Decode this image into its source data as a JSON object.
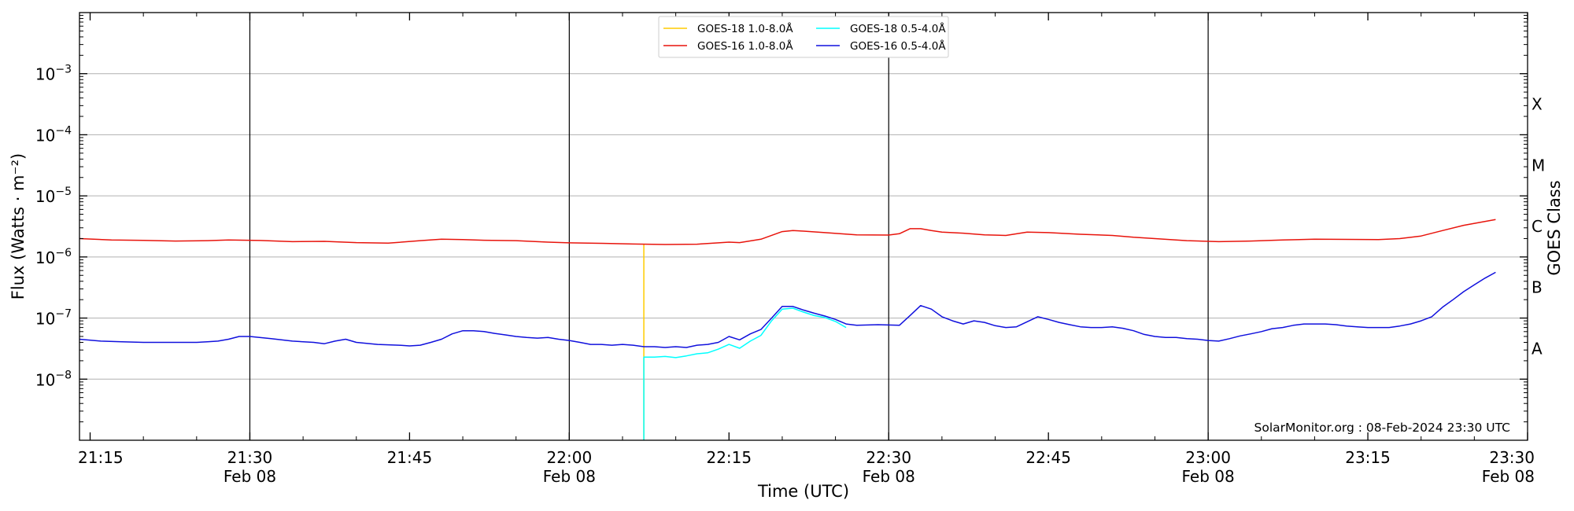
{
  "chart_data": {
    "type": "line",
    "title": "",
    "xlabel": "Time (UTC)",
    "ylabel": "Flux (Watts · m⁻²)",
    "ylabel_right": "GOES Class",
    "y_scale": "log",
    "ylim": [
      "1e-9",
      "1e-2"
    ],
    "xlim": [
      "21:14",
      "23:30"
    ],
    "date_label": "Feb 08",
    "x_ticks": [
      {
        "time": "21:15",
        "label": "21:15",
        "show_date": false
      },
      {
        "time": "21:30",
        "label": "21:30",
        "show_date": true
      },
      {
        "time": "21:45",
        "label": "21:45",
        "show_date": false
      },
      {
        "time": "22:00",
        "label": "22:00",
        "show_date": true
      },
      {
        "time": "22:15",
        "label": "22:15",
        "show_date": false
      },
      {
        "time": "22:30",
        "label": "22:30",
        "show_date": true
      },
      {
        "time": "22:45",
        "label": "22:45",
        "show_date": false
      },
      {
        "time": "23:00",
        "label": "23:00",
        "show_date": true
      },
      {
        "time": "23:15",
        "label": "23:15",
        "show_date": false
      },
      {
        "time": "23:30",
        "label": "23:30",
        "show_date": true
      }
    ],
    "vertical_lines": [
      "21:30",
      "22:00",
      "22:30",
      "23:00"
    ],
    "y_ticks": [
      {
        "value": "1e-8",
        "mant": "10",
        "exp": "−8"
      },
      {
        "value": "1e-7",
        "mant": "10",
        "exp": "−7"
      },
      {
        "value": "1e-6",
        "mant": "10",
        "exp": "−6"
      },
      {
        "value": "1e-5",
        "mant": "10",
        "exp": "−5"
      },
      {
        "value": "1e-4",
        "mant": "10",
        "exp": "−4"
      },
      {
        "value": "1e-3",
        "mant": "10",
        "exp": "−3"
      }
    ],
    "class_labels": [
      {
        "label": "A",
        "value": "3.16e-8"
      },
      {
        "label": "B",
        "value": "3.16e-7"
      },
      {
        "label": "C",
        "value": "3.16e-6"
      },
      {
        "label": "M",
        "value": "3.16e-5"
      },
      {
        "label": "X",
        "value": "3.16e-4"
      }
    ],
    "grid": "horizontal",
    "legend_position": "top-center",
    "annotation": "SolarMonitor.org : 08-Feb-2024 23:30 UTC",
    "series": [
      {
        "name": "GOES-18 1.0-8.0Å",
        "color": "#ffcc00",
        "x": [
          "22:07",
          "22:07"
        ],
        "y": [
          "1e-9",
          "1.6e-6"
        ]
      },
      {
        "name": "GOES-18 0.5-4.0Å",
        "color": "#00ffff",
        "x": [
          "22:07",
          "22:07",
          "22:08",
          "22:09",
          "22:10",
          "22:11",
          "22:12",
          "22:13",
          "22:14",
          "22:15",
          "22:16",
          "22:17",
          "22:18",
          "22:19",
          "22:20",
          "22:21",
          "22:22",
          "22:23",
          "22:24",
          "22:25",
          "22:26"
        ],
        "y": [
          "1e-9",
          "2.3e-8",
          "2.3e-8",
          "2.35e-8",
          "2.25e-8",
          "2.4e-8",
          "2.6e-8",
          "2.7e-8",
          "3.1e-8",
          "3.7e-8",
          "3.2e-8",
          "4.2e-8",
          "5.2e-8",
          "9e-8",
          "1.4e-7",
          "1.45e-7",
          "1.25e-7",
          "1.1e-7",
          "1.02e-7",
          "8.8e-8",
          "7e-8"
        ]
      },
      {
        "name": "GOES-16 1.0-8.0Å",
        "color": "#e8140c",
        "x": [
          "21:14",
          "21:17",
          "21:20",
          "21:23",
          "21:26",
          "21:28",
          "21:31",
          "21:34",
          "21:37",
          "21:40",
          "21:43",
          "21:46",
          "21:48",
          "21:50",
          "21:52",
          "21:55",
          "21:58",
          "22:00",
          "22:03",
          "22:06",
          "22:09",
          "22:12",
          "22:14",
          "22:15",
          "22:16",
          "22:18",
          "22:20",
          "22:21",
          "22:22",
          "22:24",
          "22:27",
          "22:30",
          "22:31",
          "22:32",
          "22:33",
          "22:34",
          "22:35",
          "22:37",
          "22:39",
          "22:41",
          "22:43",
          "22:45",
          "22:48",
          "22:51",
          "22:53",
          "22:55",
          "22:58",
          "23:01",
          "23:04",
          "23:07",
          "23:10",
          "23:13",
          "23:16",
          "23:18",
          "23:20",
          "23:22",
          "23:24",
          "23:27"
        ],
        "y": [
          "2e-6",
          "1.9e-6",
          "1.87e-6",
          "1.82e-6",
          "1.85e-6",
          "1.9e-6",
          "1.86e-6",
          "1.78e-6",
          "1.8e-6",
          "1.72e-6",
          "1.68e-6",
          "1.85e-6",
          "1.95e-6",
          "1.93e-6",
          "1.88e-6",
          "1.85e-6",
          "1.75e-6",
          "1.7e-6",
          "1.67e-6",
          "1.63e-6",
          "1.6e-6",
          "1.62e-6",
          "1.7e-6",
          "1.75e-6",
          "1.72e-6",
          "1.95e-6",
          "2.6e-6",
          "2.7e-6",
          "2.65e-6",
          "2.5e-6",
          "2.3e-6",
          "2.28e-6",
          "2.4e-6",
          "2.9e-6",
          "2.9e-6",
          "2.7e-6",
          "2.55e-6",
          "2.45e-6",
          "2.3e-6",
          "2.25e-6",
          "2.55e-6",
          "2.5e-6",
          "2.35e-6",
          "2.25e-6",
          "2.1e-6",
          "2e-6",
          "1.85e-6",
          "1.78e-6",
          "1.82e-6",
          "1.9e-6",
          "1.95e-6",
          "1.94e-6",
          "1.93e-6",
          "2e-6",
          "2.2e-6",
          "2.7e-6",
          "3.3e-6",
          "4.1e-6"
        ]
      },
      {
        "name": "GOES-16 0.5-4.0Å",
        "color": "#1010dd",
        "x": [
          "21:14",
          "21:16",
          "21:18",
          "21:20",
          "21:22",
          "21:24",
          "21:25",
          "21:26",
          "21:27",
          "21:28",
          "21:29",
          "21:30",
          "21:32",
          "21:34",
          "21:36",
          "21:37",
          "21:38",
          "21:39",
          "21:40",
          "21:42",
          "21:44",
          "21:45",
          "21:46",
          "21:47",
          "21:48",
          "21:49",
          "21:50",
          "21:51",
          "21:52",
          "21:53",
          "21:54",
          "21:55",
          "21:56",
          "21:57",
          "21:58",
          "21:59",
          "22:00",
          "22:01",
          "22:02",
          "22:03",
          "22:04",
          "22:05",
          "22:06",
          "22:07",
          "22:08",
          "22:09",
          "22:10",
          "22:11",
          "22:12",
          "22:13",
          "22:14",
          "22:15",
          "22:16",
          "22:17",
          "22:18",
          "22:19",
          "22:20",
          "22:21",
          "22:22",
          "22:23",
          "22:24",
          "22:25",
          "22:26",
          "22:27",
          "22:28",
          "22:29",
          "22:30",
          "22:31",
          "22:32",
          "22:33",
          "22:34",
          "22:35",
          "22:36",
          "22:37",
          "22:38",
          "22:39",
          "22:40",
          "22:41",
          "22:42",
          "22:43",
          "22:44",
          "22:45",
          "22:46",
          "22:47",
          "22:48",
          "22:49",
          "22:50",
          "22:51",
          "22:52",
          "22:53",
          "22:54",
          "22:55",
          "22:56",
          "22:57",
          "22:58",
          "22:59",
          "23:00",
          "23:01",
          "23:02",
          "23:03",
          "23:04",
          "23:05",
          "23:06",
          "23:07",
          "23:08",
          "23:09",
          "23:10",
          "23:11",
          "23:12",
          "23:13",
          "23:14",
          "23:15",
          "23:16",
          "23:17",
          "23:18",
          "23:19",
          "23:20",
          "23:21",
          "23:22",
          "23:23",
          "23:24",
          "23:25",
          "23:26",
          "23:27"
        ],
        "y": [
          "4.5e-8",
          "4.2e-8",
          "4.1e-8",
          "4e-8",
          "4e-8",
          "4e-8",
          "4e-8",
          "4.1e-8",
          "4.2e-8",
          "4.5e-8",
          "5e-8",
          "5e-8",
          "4.6e-8",
          "4.2e-8",
          "4e-8",
          "3.8e-8",
          "4.2e-8",
          "4.5e-8",
          "4e-8",
          "3.7e-8",
          "3.6e-8",
          "3.5e-8",
          "3.6e-8",
          "4e-8",
          "4.5e-8",
          "5.5e-8",
          "6.2e-8",
          "6.2e-8",
          "6e-8",
          "5.6e-8",
          "5.3e-8",
          "5e-8",
          "4.8e-8",
          "4.7e-8",
          "4.8e-8",
          "4.5e-8",
          "4.3e-8",
          "4e-8",
          "3.7e-8",
          "3.7e-8",
          "3.6e-8",
          "3.7e-8",
          "3.6e-8",
          "3.4e-8",
          "3.4e-8",
          "3.3e-8",
          "3.4e-8",
          "3.3e-8",
          "3.6e-8",
          "3.7e-8",
          "4e-8",
          "5e-8",
          "4.4e-8",
          "5.5e-8",
          "6.5e-8",
          "1e-7",
          "1.55e-7",
          "1.55e-7",
          "1.35e-7",
          "1.2e-7",
          "1.08e-7",
          "9.5e-8",
          "8e-8",
          "7.6e-8",
          "7.7e-8",
          "7.8e-8",
          "7.7e-8",
          "7.6e-8",
          "1.1e-7",
          "1.6e-7",
          "1.4e-7",
          "1.05e-7",
          "9e-8",
          "8e-8",
          "9e-8",
          "8.5e-8",
          "7.5e-8",
          "7e-8",
          "7.2e-8",
          "8.7e-8",
          "1.05e-7",
          "9.5e-8",
          "8.5e-8",
          "7.8e-8",
          "7.2e-8",
          "7e-8",
          "7e-8",
          "7.2e-8",
          "6.8e-8",
          "6.2e-8",
          "5.4e-8",
          "5e-8",
          "4.8e-8",
          "4.8e-8",
          "4.6e-8",
          "4.5e-8",
          "4.3e-8",
          "4.2e-8",
          "4.6e-8",
          "5.1e-8",
          "5.5e-8",
          "6e-8",
          "6.7e-8",
          "7e-8",
          "7.6e-8",
          "8e-8",
          "8e-8",
          "8e-8",
          "7.8e-8",
          "7.4e-8",
          "7.2e-8",
          "7e-8",
          "7e-8",
          "7e-8",
          "7.4e-8",
          "8e-8",
          "9e-8",
          "1.05e-7",
          "1.5e-7",
          "2e-7",
          "2.7e-7",
          "3.5e-7",
          "4.5e-7",
          "5.6e-7"
        ]
      }
    ]
  }
}
